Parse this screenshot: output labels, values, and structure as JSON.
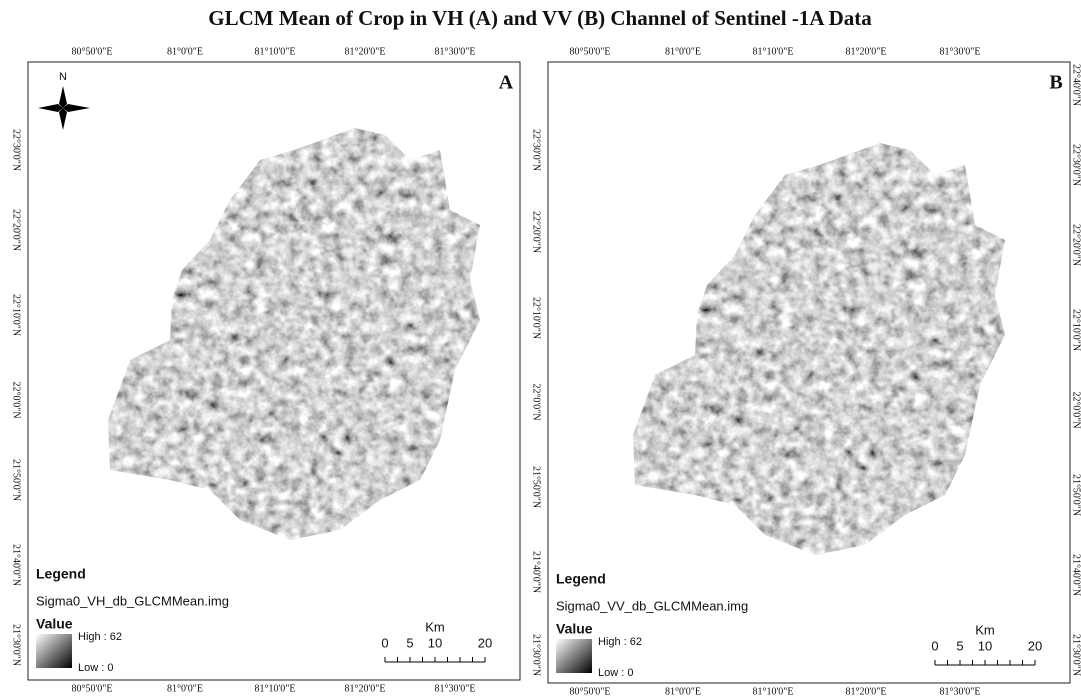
{
  "title": "GLCM Mean of Crop in VH (A) and VV (B) Channel of Sentinel -1A Data",
  "panels": [
    {
      "label": "A",
      "top_ticks": [
        "80°50'0\"E",
        "81°0'0\"E",
        "81°10'0\"E",
        "81°20'0\"E",
        "81°30'0\"E"
      ],
      "bottom_ticks": [
        "80°50'0\"E",
        "81°0'0\"E",
        "81°10'0\"E",
        "81°20'0\"E",
        "81°30'0\"E"
      ],
      "left_ticks": [
        "22°30'0\"N",
        "22°20'0\"N",
        "22°10'0\"N",
        "22°0'0\"N",
        "21°50'0\"N",
        "21°40'0\"N",
        "21°30'0\"N"
      ],
      "north": "N",
      "legend": {
        "heading": "Legend",
        "layer": "Sigma0_VH_db_GLCMMean.img",
        "value": "Value",
        "high": "High : 62",
        "low": "Low : 0"
      },
      "scale": {
        "unit": "Km",
        "ticks": [
          0,
          5,
          10,
          20
        ]
      }
    },
    {
      "label": "B",
      "top_ticks": [
        "80°50'0\"E",
        "81°0'0\"E",
        "81°10'0\"E",
        "81°20'0\"E",
        "81°30'0\"E"
      ],
      "bottom_ticks": [
        "80°50'0\"E",
        "81°0'0\"E",
        "81°10'0\"E",
        "81°20'0\"E",
        "81°30'0\"E"
      ],
      "left_ticks": [
        "22°30'0\"N",
        "22°20'0\"N",
        "22°10'0\"N",
        "22°0'0\"N",
        "21°50'0\"N",
        "21°40'0\"N",
        "21°30'0\"N"
      ],
      "right_ticks": [
        "22°40'0\"N",
        "22°30'0\"N",
        "22°20'0\"N",
        "22°10'0\"N",
        "22°0'0\"N",
        "21°50'0\"N",
        "21°40'0\"N",
        "21°30'0\"N"
      ],
      "legend": {
        "heading": "Legend",
        "layer": "Sigma0_VV_db_GLCMMean.img",
        "value": "Value",
        "high": "High : 62",
        "low": "Low : 0"
      },
      "scale": {
        "unit": "Km",
        "ticks": [
          0,
          5,
          10,
          20
        ]
      }
    }
  ]
}
